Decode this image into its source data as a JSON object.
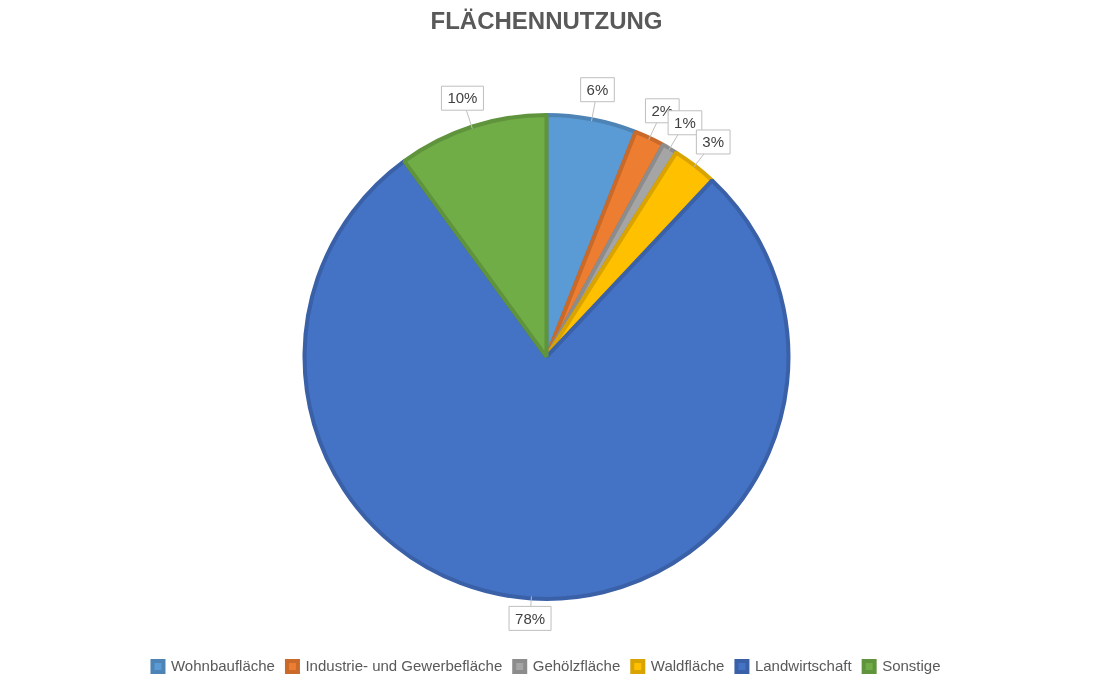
{
  "chart_data": {
    "type": "pie",
    "title": "FLÄCHENNUTZUNG",
    "categories": [
      "Wohnbaufläche",
      "Industrie- und Gewerbefläche",
      "Gehölzfläche",
      "Waldfläche",
      "Landwirtschaft",
      "Sonstige"
    ],
    "values": [
      6,
      2,
      1,
      3,
      78,
      10
    ],
    "colors": [
      "#5b9bd5",
      "#ed7d31",
      "#a5a5a5",
      "#ffc000",
      "#4472c4",
      "#70ad47"
    ],
    "value_labels": [
      "6%",
      "2%",
      "1%",
      "3%",
      "78%",
      "10%"
    ],
    "legend": "bottom"
  }
}
